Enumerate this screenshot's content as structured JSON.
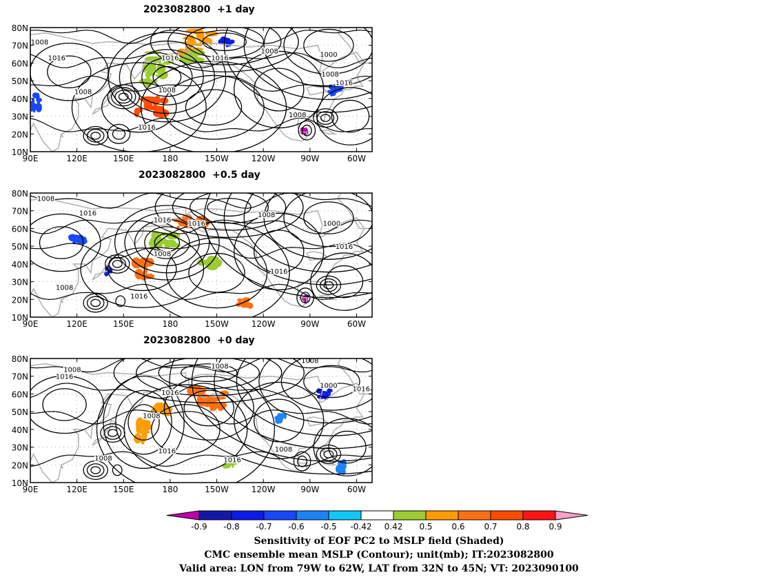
{
  "chart_data": [
    {
      "type": "heatmap",
      "title": "2023082800  +1 day",
      "x_ticks": [
        "90E",
        "120E",
        "150E",
        "180",
        "150W",
        "120W",
        "90W",
        "60W"
      ],
      "y_ticks": [
        "10N",
        "20N",
        "30N",
        "40N",
        "50N",
        "60N",
        "70N",
        "80N"
      ],
      "xlim": [
        90,
        310
      ],
      "ylim": [
        10,
        80
      ],
      "contour_labels": [
        {
          "text": "1008",
          "lon": 96,
          "lat": 72
        },
        {
          "text": "1016",
          "lon": 107,
          "lat": 63
        },
        {
          "text": "1008",
          "lon": 124,
          "lat": 44
        },
        {
          "text": "1016",
          "lon": 180,
          "lat": 63
        },
        {
          "text": "1016",
          "lon": 212,
          "lat": 63
        },
        {
          "text": "1008",
          "lon": 178,
          "lat": 45
        },
        {
          "text": "1016",
          "lon": 165,
          "lat": 24
        },
        {
          "text": "1008",
          "lon": 244,
          "lat": 67
        },
        {
          "text": "1000",
          "lon": 282,
          "lat": 65
        },
        {
          "text": "1008",
          "lon": 283,
          "lat": 54
        },
        {
          "text": "1016",
          "lon": 292,
          "lat": 49
        },
        {
          "text": "1008",
          "lon": 262,
          "lat": 31
        }
      ],
      "shaded_regions": [
        {
          "lon": [
            158,
            178
          ],
          "lat": [
            31,
            40
          ],
          "value": 0.8
        },
        {
          "lon": [
            190,
            210
          ],
          "lat": [
            70,
            79
          ],
          "value": 0.6
        },
        {
          "lon": [
            186,
            198
          ],
          "lat": [
            62,
            68
          ],
          "value": 0.6
        },
        {
          "lon": [
            168,
            200
          ],
          "lat": [
            60,
            66
          ],
          "value": 0.5
        },
        {
          "lon": [
            163,
            176
          ],
          "lat": [
            49,
            58
          ],
          "value": 0.5
        },
        {
          "lon": [
            212,
            222
          ],
          "lat": [
            70,
            74
          ],
          "value": -0.7
        },
        {
          "lon": [
            90,
            96
          ],
          "lat": [
            34,
            42
          ],
          "value": -0.6
        },
        {
          "lon": [
            282,
            290
          ],
          "lat": [
            42,
            48
          ],
          "value": -0.6
        },
        {
          "lon": [
            265,
            268
          ],
          "lat": [
            20,
            23
          ],
          "value": -0.9
        }
      ]
    },
    {
      "type": "heatmap",
      "title": "2023082800  +0.5 day",
      "x_ticks": [
        "90E",
        "120E",
        "150E",
        "180",
        "150W",
        "120W",
        "90W",
        "60W"
      ],
      "y_ticks": [
        "10N",
        "20N",
        "30N",
        "40N",
        "50N",
        "60N",
        "70N",
        "80N"
      ],
      "xlim": [
        90,
        310
      ],
      "ylim": [
        10,
        80
      ],
      "contour_labels": [
        {
          "text": "1008",
          "lon": 100,
          "lat": 77
        },
        {
          "text": "1016",
          "lon": 127,
          "lat": 69
        },
        {
          "text": "1016",
          "lon": 175,
          "lat": 65
        },
        {
          "text": "1016",
          "lon": 197,
          "lat": 63
        },
        {
          "text": "1008",
          "lon": 242,
          "lat": 68
        },
        {
          "text": "1000",
          "lon": 284,
          "lat": 63
        },
        {
          "text": "1008",
          "lon": 175,
          "lat": 46
        },
        {
          "text": "1016",
          "lon": 292,
          "lat": 50
        },
        {
          "text": "1016",
          "lon": 250,
          "lat": 36
        },
        {
          "text": "1008",
          "lon": 112,
          "lat": 27
        },
        {
          "text": "1016",
          "lon": 160,
          "lat": 22
        }
      ],
      "shaded_regions": [
        {
          "lon": [
            158,
            170
          ],
          "lat": [
            32,
            42
          ],
          "value": 0.7
        },
        {
          "lon": [
            185,
            202
          ],
          "lat": [
            60,
            66
          ],
          "value": 0.7
        },
        {
          "lon": [
            168,
            183
          ],
          "lat": [
            49,
            57
          ],
          "value": 0.5
        },
        {
          "lon": [
            200,
            212
          ],
          "lat": [
            37,
            44
          ],
          "value": 0.5
        },
        {
          "lon": [
            117,
            125
          ],
          "lat": [
            52,
            56
          ],
          "value": -0.6
        },
        {
          "lon": [
            139,
            142
          ],
          "lat": [
            34,
            38
          ],
          "value": -0.7
        },
        {
          "lon": [
            224,
            232
          ],
          "lat": [
            16,
            20
          ],
          "value": 0.7
        },
        {
          "lon": [
            266,
            268
          ],
          "lat": [
            19,
            22
          ],
          "value": -0.9
        }
      ]
    },
    {
      "type": "heatmap",
      "title": "2023082800  +0 day",
      "x_ticks": [
        "90E",
        "120E",
        "150E",
        "180",
        "150W",
        "120W",
        "90W",
        "60W"
      ],
      "y_ticks": [
        "10N",
        "20N",
        "30N",
        "40N",
        "50N",
        "60N",
        "70N",
        "80N"
      ],
      "xlim": [
        90,
        310
      ],
      "ylim": [
        10,
        80
      ],
      "contour_labels": [
        {
          "text": "1008",
          "lon": 117,
          "lat": 74
        },
        {
          "text": "1016",
          "lon": 112,
          "lat": 70
        },
        {
          "text": "1008",
          "lon": 212,
          "lat": 76
        },
        {
          "text": "1016",
          "lon": 180,
          "lat": 61
        },
        {
          "text": "1008",
          "lon": 168,
          "lat": 48
        },
        {
          "text": "1016",
          "lon": 178,
          "lat": 28
        },
        {
          "text": "1016",
          "lon": 220,
          "lat": 23
        },
        {
          "text": "1008",
          "lon": 137,
          "lat": 24
        },
        {
          "text": "1008",
          "lon": 270,
          "lat": 79
        },
        {
          "text": "1000",
          "lon": 282,
          "lat": 65
        },
        {
          "text": "1016",
          "lon": 303,
          "lat": 63
        },
        {
          "text": "1008",
          "lon": 253,
          "lat": 29
        }
      ],
      "shaded_regions": [
        {
          "lon": [
            195,
            216
          ],
          "lat": [
            52,
            62
          ],
          "value": 0.7
        },
        {
          "lon": [
            159,
            166
          ],
          "lat": [
            33,
            45
          ],
          "value": 0.6
        },
        {
          "lon": [
            170,
            180
          ],
          "lat": [
            48,
            54
          ],
          "value": 0.6
        },
        {
          "lon": [
            215,
            222
          ],
          "lat": [
            19,
            23
          ],
          "value": 0.5
        },
        {
          "lon": [
            276,
            283
          ],
          "lat": [
            58,
            62
          ],
          "value": -0.7
        },
        {
          "lon": [
            288,
            292
          ],
          "lat": [
            16,
            22
          ],
          "value": -0.5
        },
        {
          "lon": [
            248,
            254
          ],
          "lat": [
            44,
            48
          ],
          "value": -0.5
        }
      ]
    }
  ],
  "colorbar": {
    "ticks": [
      "-0.9",
      "-0.8",
      "-0.7",
      "-0.6",
      "-0.5",
      "-0.42",
      "0.42",
      "0.5",
      "0.6",
      "0.7",
      "0.8",
      "0.9"
    ],
    "colors": [
      "#c000a8",
      "#1418a8",
      "#0c1ce8",
      "#1848ff",
      "#1c84f8",
      "#10c8f8",
      "#ffffff",
      "#9ccc34",
      "#ff9c00",
      "#ff7014",
      "#ff4c00",
      "#ff1414",
      "#f8a0c8"
    ]
  },
  "colors": {
    "coast": "#b4b4b4",
    "contour": "#000000",
    "grid": "#9a9a9a"
  },
  "captions": [
    "Sensitivity of EOF PC2 to MSLP field (Shaded)",
    "CMC ensemble mean MSLP (Contour); unit(mb); IT:2023082800",
    "Valid area: LON from 79W to 62W, LAT from 32N to 45N; VT: 2023090100"
  ]
}
